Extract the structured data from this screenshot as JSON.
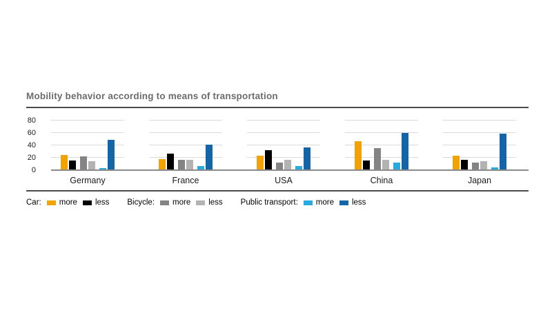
{
  "title": "Mobility behavior according to means of transportation",
  "colors": {
    "car_more": "#F1A305",
    "car_less": "#000000",
    "bicycle_more": "#848484",
    "bicycle_less": "#B3B3B3",
    "public_transport_more": "#29ABE2",
    "public_transport_less": "#1464A8",
    "grid": "#DADADA",
    "axis": "#8A8A8A",
    "separator": "#4A4A4A",
    "title_text": "#6B6C6E"
  },
  "legend": {
    "groups": [
      {
        "label": "Car:",
        "items": [
          {
            "name": "more",
            "color": "#F1A305"
          },
          {
            "name": "less",
            "color": "#000000"
          }
        ]
      },
      {
        "label": "Bicycle:",
        "items": [
          {
            "name": "more",
            "color": "#848484"
          },
          {
            "name": "less",
            "color": "#B3B3B3"
          }
        ]
      },
      {
        "label": "Public transport:",
        "items": [
          {
            "name": "more",
            "color": "#29ABE2"
          },
          {
            "name": "less",
            "color": "#1464A8"
          }
        ]
      }
    ]
  },
  "chart_data": {
    "type": "bar",
    "title": "Mobility behavior according to means of transportation",
    "categories": [
      "Germany",
      "France",
      "USA",
      "China",
      "Japan"
    ],
    "series": [
      {
        "name": "Car: more",
        "color": "#F1A305",
        "values": [
          23,
          17,
          22,
          45,
          22
        ]
      },
      {
        "name": "Car: less",
        "color": "#000000",
        "values": [
          14,
          25,
          31,
          14,
          16
        ]
      },
      {
        "name": "Bicycle: more",
        "color": "#848484",
        "values": [
          21,
          15,
          11,
          34,
          11
        ]
      },
      {
        "name": "Bicycle: less",
        "color": "#B3B3B3",
        "values": [
          13,
          15,
          16,
          16,
          13
        ]
      },
      {
        "name": "Public transport: more",
        "color": "#29ABE2",
        "values": [
          2,
          5,
          5,
          11,
          3
        ]
      },
      {
        "name": "Public transport: less",
        "color": "#1464A8",
        "values": [
          48,
          40,
          35,
          59,
          58
        ]
      }
    ],
    "xlabel": "",
    "ylabel": "",
    "yticks": [
      0,
      20,
      40,
      60,
      80
    ],
    "ylim": [
      0,
      90
    ],
    "grid": "horizontal, segmented per category group",
    "legend_position": "bottom-left"
  }
}
